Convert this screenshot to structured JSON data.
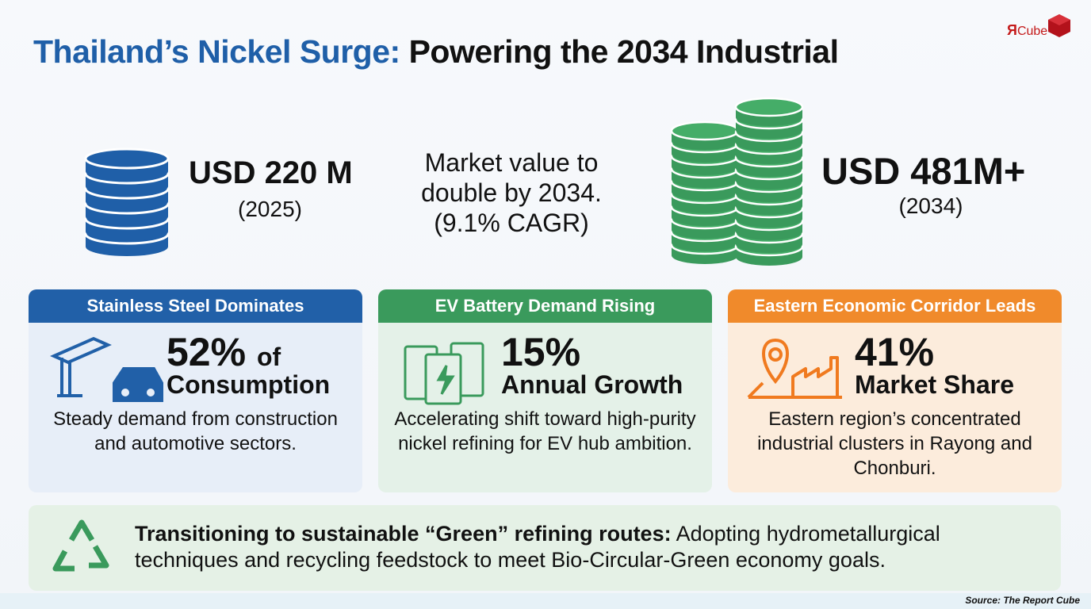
{
  "header": {
    "title_highlight": "Thailand’s Nickel Surge:",
    "title_rest": "Powering the 2034 Industrial",
    "logo_mark": "Я",
    "logo_text": "Cube"
  },
  "stats": {
    "start": {
      "value": "USD 220 M",
      "year": "(2025)"
    },
    "middle": [
      "Market value to",
      "double by 2034.",
      "(9.1% CAGR)"
    ],
    "end": {
      "value": "USD 481M+",
      "year": "(2034)"
    }
  },
  "cards": [
    {
      "title": "Stainless Steel Dominates",
      "figure": "52%",
      "figure_suffix": "of",
      "figure_line2": "Consumption",
      "description": "Steady demand from construction and automotive sectors."
    },
    {
      "title": "EV Battery Demand Rising",
      "figure": "15%",
      "figure_suffix": "",
      "figure_line2": "Annual Growth",
      "description": "Accelerating shift toward high-purity nickel refining for EV hub ambition."
    },
    {
      "title": "Eastern Economic Corridor Leads",
      "figure": "41%",
      "figure_suffix": "",
      "figure_line2": "Market Share",
      "description": "Eastern region’s concentrated industrial clusters in Rayong and Chonburi."
    }
  ],
  "footer_note": {
    "lead": "Transitioning to sustainable “Green” refining routes:",
    "body": "Adopting hydrometallurgical techniques and recycling feedstock to meet Bio-Circular-Green economy goals."
  },
  "source": "Source: The Report Cube"
}
